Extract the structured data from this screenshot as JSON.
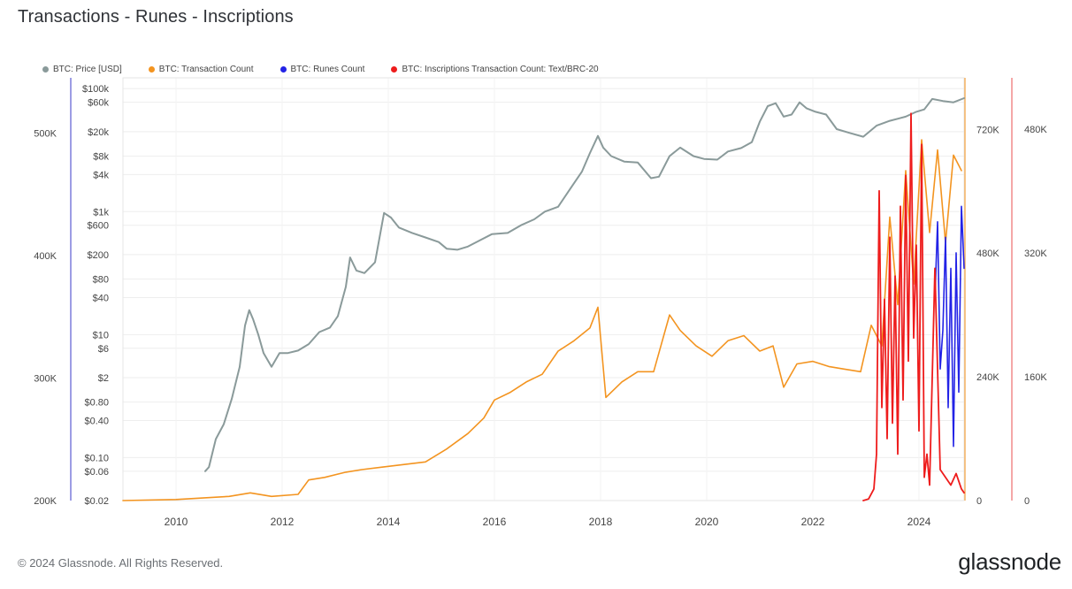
{
  "title": "Transactions - Runes - Inscriptions",
  "footer": "© 2024 Glassnode. All Rights Reserved.",
  "brand": "glassnode",
  "colors": {
    "price": "#8a9a9a",
    "tx": "#f39420",
    "runes": "#2323e6",
    "inscriptions": "#ee1c1c",
    "left_axis": "#7b7bdc",
    "right_axis": "#f08a8a",
    "grid": "#eeeeee"
  },
  "chart_data": {
    "type": "line",
    "legend": [
      {
        "key": "price",
        "label": "BTC: Price [USD]"
      },
      {
        "key": "tx",
        "label": "BTC: Transaction Count"
      },
      {
        "key": "runes",
        "label": "BTC: Runes Count"
      },
      {
        "key": "inscriptions",
        "label": "BTC: Inscriptions Transaction Count: Text/BRC-20"
      }
    ],
    "legend_position": "top-left",
    "x_ticks": [
      "2010",
      "2012",
      "2014",
      "2016",
      "2018",
      "2020",
      "2022",
      "2024"
    ],
    "xlim": [
      2009.0,
      2024.85
    ],
    "axes": {
      "tx_count_left": {
        "ticks": [
          "200K",
          "300K",
          "400K",
          "500K"
        ],
        "values": [
          200000,
          300000,
          400000,
          500000
        ],
        "ylim": [
          200000,
          545000
        ]
      },
      "price_log": {
        "ticks": [
          "$0.02",
          "$0.06",
          "$0.10",
          "$0.40",
          "$0.80",
          "$2",
          "$6",
          "$10",
          "$40",
          "$80",
          "$200",
          "$600",
          "$1k",
          "$4k",
          "$8k",
          "$20k",
          "$60k",
          "$100k"
        ],
        "values": [
          0.02,
          0.06,
          0.1,
          0.4,
          0.8,
          2,
          6,
          10,
          40,
          80,
          200,
          600,
          1000,
          4000,
          8000,
          20000,
          60000,
          100000
        ],
        "ylim": [
          0.02,
          150000
        ],
        "scale": "log"
      },
      "tx_count_right": {
        "ticks": [
          "0",
          "240K",
          "480K",
          "720K"
        ],
        "values": [
          0,
          240000,
          480000,
          720000
        ],
        "ylim": [
          0,
          820000
        ]
      },
      "runes_inscriptions": {
        "ticks": [
          "0",
          "160K",
          "320K",
          "480K"
        ],
        "values": [
          0,
          160000,
          320000,
          480000
        ],
        "ylim": [
          0,
          546000
        ]
      }
    },
    "grid": true,
    "series": [
      {
        "key": "price",
        "name": "BTC: Price [USD]",
        "axis": "price_log",
        "x": [
          2010.55,
          2010.62,
          2010.75,
          2010.9,
          2011.05,
          2011.2,
          2011.3,
          2011.38,
          2011.45,
          2011.55,
          2011.65,
          2011.8,
          2011.95,
          2012.1,
          2012.3,
          2012.5,
          2012.7,
          2012.9,
          2013.05,
          2013.2,
          2013.28,
          2013.4,
          2013.55,
          2013.75,
          2013.92,
          2014.05,
          2014.2,
          2014.45,
          2014.7,
          2014.95,
          2015.1,
          2015.3,
          2015.5,
          2015.75,
          2015.95,
          2016.25,
          2016.5,
          2016.75,
          2016.95,
          2017.2,
          2017.45,
          2017.65,
          2017.8,
          2017.95,
          2018.05,
          2018.2,
          2018.45,
          2018.7,
          2018.95,
          2019.1,
          2019.3,
          2019.5,
          2019.75,
          2019.95,
          2020.2,
          2020.4,
          2020.65,
          2020.85,
          2021.0,
          2021.15,
          2021.3,
          2021.45,
          2021.6,
          2021.75,
          2021.88,
          2022.05,
          2022.25,
          2022.45,
          2022.7,
          2022.95,
          2023.2,
          2023.45,
          2023.75,
          2023.95,
          2024.1,
          2024.25,
          2024.45,
          2024.65,
          2024.85
        ],
        "y": [
          0.06,
          0.07,
          0.2,
          0.35,
          0.9,
          3,
          14,
          25,
          18,
          10,
          5,
          3,
          5,
          5,
          5.5,
          7,
          11,
          13,
          20,
          60,
          180,
          110,
          100,
          150,
          950,
          800,
          550,
          450,
          380,
          320,
          250,
          240,
          270,
          350,
          430,
          450,
          600,
          750,
          1000,
          1200,
          2500,
          4500,
          9000,
          17000,
          11000,
          8000,
          6500,
          6300,
          3500,
          3700,
          8000,
          11000,
          8000,
          7200,
          7000,
          9500,
          10800,
          13500,
          29000,
          52000,
          58000,
          35000,
          38000,
          60000,
          48000,
          42000,
          38000,
          22000,
          19000,
          16500,
          25000,
          30000,
          35000,
          42000,
          46000,
          68000,
          63000,
          60000,
          70000
        ]
      },
      {
        "key": "tx",
        "name": "BTC: Transaction Count",
        "axis": "tx_count_right",
        "x": [
          2009.0,
          2010.0,
          2011.0,
          2011.4,
          2011.8,
          2012.3,
          2012.5,
          2012.8,
          2013.2,
          2013.5,
          2013.9,
          2014.3,
          2014.7,
          2015.1,
          2015.5,
          2015.8,
          2016.0,
          2016.3,
          2016.6,
          2016.9,
          2017.2,
          2017.5,
          2017.8,
          2017.95,
          2018.1,
          2018.4,
          2018.7,
          2019.0,
          2019.3,
          2019.5,
          2019.8,
          2020.1,
          2020.4,
          2020.7,
          2021.0,
          2021.25,
          2021.45,
          2021.7,
          2022.0,
          2022.3,
          2022.6,
          2022.9,
          2023.1,
          2023.3,
          2023.45,
          2023.6,
          2023.75,
          2023.9,
          2024.05,
          2024.2,
          2024.35,
          2024.5,
          2024.65,
          2024.8
        ],
        "y": [
          0,
          2000,
          8000,
          15000,
          8000,
          12000,
          40000,
          45000,
          55000,
          60000,
          65000,
          70000,
          75000,
          100000,
          130000,
          160000,
          195000,
          210000,
          230000,
          245000,
          290000,
          310000,
          335000,
          375000,
          200000,
          230000,
          250000,
          250000,
          360000,
          330000,
          300000,
          280000,
          310000,
          320000,
          290000,
          300000,
          220000,
          265000,
          270000,
          260000,
          255000,
          250000,
          340000,
          300000,
          550000,
          380000,
          640000,
          420000,
          700000,
          520000,
          680000,
          500000,
          670000,
          640000
        ]
      },
      {
        "key": "runes",
        "name": "BTC: Runes Count",
        "axis": "runes_inscriptions",
        "x": [
          2024.3,
          2024.35,
          2024.4,
          2024.45,
          2024.5,
          2024.55,
          2024.6,
          2024.65,
          2024.7,
          2024.75,
          2024.8,
          2024.85
        ],
        "y": [
          260000,
          360000,
          170000,
          220000,
          340000,
          120000,
          300000,
          70000,
          320000,
          140000,
          380000,
          300000
        ]
      },
      {
        "key": "inscriptions",
        "name": "BTC: Inscriptions Transaction Count: Text/BRC-20",
        "axis": "runes_inscriptions",
        "x": [
          2022.95,
          2023.05,
          2023.15,
          2023.2,
          2023.25,
          2023.3,
          2023.35,
          2023.4,
          2023.45,
          2023.5,
          2023.55,
          2023.6,
          2023.65,
          2023.7,
          2023.75,
          2023.8,
          2023.85,
          2023.9,
          2023.95,
          2024.0,
          2024.05,
          2024.1,
          2024.15,
          2024.2,
          2024.3,
          2024.4,
          2024.5,
          2024.6,
          2024.7,
          2024.8,
          2024.85
        ],
        "y": [
          0,
          2000,
          15000,
          60000,
          400000,
          120000,
          260000,
          80000,
          340000,
          100000,
          290000,
          60000,
          380000,
          130000,
          420000,
          180000,
          500000,
          210000,
          330000,
          90000,
          460000,
          30000,
          60000,
          20000,
          300000,
          40000,
          30000,
          20000,
          35000,
          15000,
          10000
        ]
      }
    ]
  }
}
